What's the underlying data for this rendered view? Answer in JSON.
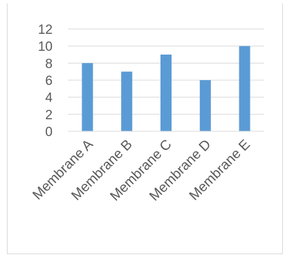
{
  "chart_data": {
    "type": "bar",
    "title": "",
    "xlabel": "",
    "ylabel": "",
    "categories": [
      "Membrane A",
      "Membrane B",
      "Membrane C",
      "Membrane D",
      "Membrane E"
    ],
    "values": [
      8,
      7,
      9,
      6,
      10
    ],
    "ylim": [
      0,
      12
    ],
    "yticks": [
      0,
      2,
      4,
      6,
      8,
      10,
      12
    ],
    "grid": true,
    "legend": "none",
    "bar_color": "#5b9bd5",
    "grid_color": "#d9d9d9"
  }
}
